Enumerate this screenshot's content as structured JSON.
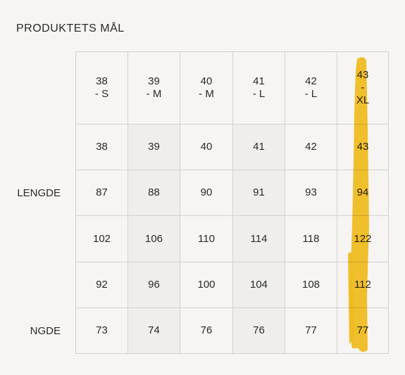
{
  "title": "PRODUKTETS MÅL",
  "table": {
    "header": [
      "38\n- S",
      "39\n- M",
      "40\n- M",
      "41\n- L",
      "42\n- L",
      "43\n-\nXL"
    ],
    "rows": [
      {
        "cells": [
          38,
          39,
          40,
          41,
          42,
          43
        ]
      },
      {
        "label": "LENGDE",
        "cells": [
          87,
          88,
          90,
          91,
          93,
          94
        ]
      },
      {
        "cells": [
          102,
          106,
          110,
          114,
          118,
          122
        ]
      },
      {
        "cells": [
          92,
          96,
          100,
          104,
          108,
          112
        ]
      },
      {
        "label": "NGDE",
        "cells": [
          73,
          74,
          76,
          76,
          77,
          77
        ]
      }
    ]
  }
}
